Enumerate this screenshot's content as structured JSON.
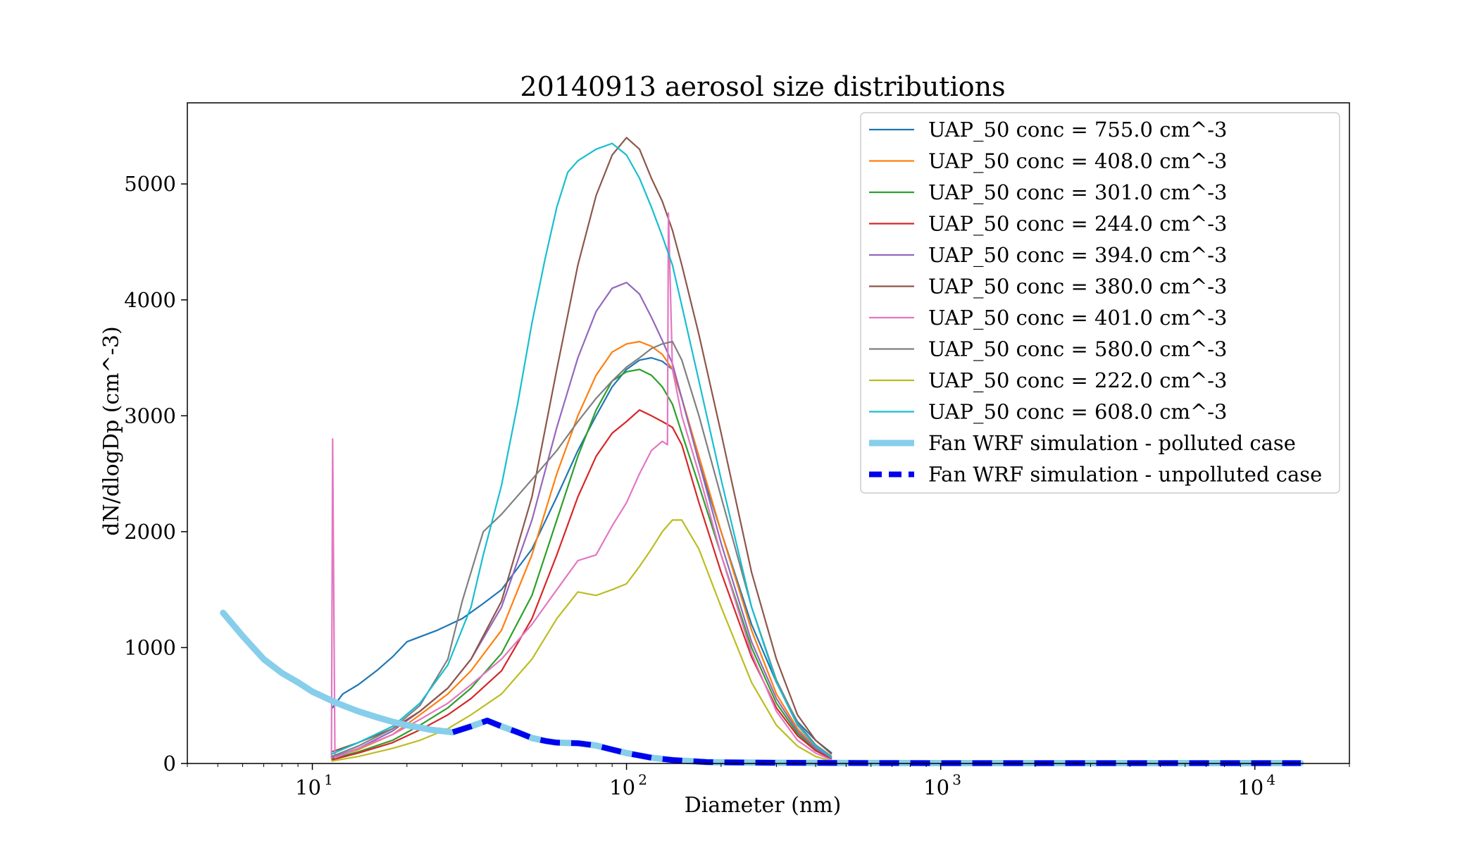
{
  "chart_data": {
    "type": "line",
    "title": "20140913 aerosol size distributions",
    "xlabel": "Diameter (nm)",
    "ylabel": "dN/dlogDp (cm^-3)",
    "xscale": "log",
    "xlim": [
      4,
      20000
    ],
    "ylim": [
      0,
      5700
    ],
    "xticks": [
      {
        "value": 10,
        "base": "10",
        "exp": "1"
      },
      {
        "value": 100,
        "base": "10",
        "exp": "2"
      },
      {
        "value": 1000,
        "base": "10",
        "exp": "3"
      },
      {
        "value": 10000,
        "base": "10",
        "exp": "4"
      }
    ],
    "yticks": [
      0,
      1000,
      2000,
      3000,
      4000,
      5000
    ],
    "grid": false,
    "legend_position": "top-right",
    "series": [
      {
        "name": "UAP_50 conc = 755.0 cm^-3",
        "color": "#1f77b4",
        "style": "solid",
        "x": [
          11.5,
          12.5,
          14,
          16,
          18,
          20,
          25,
          30,
          35,
          40,
          50,
          60,
          70,
          80,
          90,
          100,
          110,
          120,
          130,
          140,
          150,
          170,
          200,
          250,
          300,
          350,
          400,
          450
        ],
        "y": [
          470,
          600,
          680,
          800,
          920,
          1050,
          1150,
          1250,
          1380,
          1500,
          1850,
          2300,
          2700,
          3000,
          3250,
          3400,
          3480,
          3500,
          3470,
          3400,
          3150,
          2600,
          2000,
          1200,
          700,
          360,
          200,
          90
        ]
      },
      {
        "name": "UAP_50 conc = 408.0 cm^-3",
        "color": "#ff7f0e",
        "style": "solid",
        "x": [
          11.5,
          14,
          18,
          22,
          27,
          32,
          40,
          50,
          60,
          70,
          80,
          90,
          100,
          110,
          120,
          130,
          140,
          150,
          170,
          200,
          250,
          300,
          350,
          400,
          450
        ],
        "y": [
          50,
          120,
          250,
          420,
          600,
          800,
          1150,
          1800,
          2500,
          3000,
          3350,
          3550,
          3620,
          3640,
          3600,
          3530,
          3400,
          3150,
          2650,
          2000,
          1150,
          600,
          300,
          140,
          50
        ]
      },
      {
        "name": "UAP_50 conc = 301.0 cm^-3",
        "color": "#2ca02c",
        "style": "solid",
        "x": [
          11.5,
          14,
          18,
          22,
          27,
          32,
          40,
          50,
          60,
          70,
          80,
          90,
          100,
          110,
          120,
          130,
          140,
          150,
          170,
          200,
          250,
          300,
          350,
          400,
          450
        ],
        "y": [
          40,
          100,
          200,
          330,
          480,
          650,
          950,
          1450,
          2100,
          2650,
          3050,
          3300,
          3380,
          3400,
          3350,
          3250,
          3100,
          2850,
          2400,
          1800,
          1000,
          520,
          260,
          120,
          40
        ]
      },
      {
        "name": "UAP_50 conc = 244.0 cm^-3",
        "color": "#d62728",
        "style": "solid",
        "x": [
          11.5,
          14,
          18,
          22,
          27,
          32,
          40,
          50,
          60,
          70,
          80,
          90,
          100,
          110,
          120,
          130,
          140,
          150,
          170,
          200,
          250,
          300,
          350,
          400,
          450
        ],
        "y": [
          30,
          90,
          180,
          290,
          420,
          560,
          800,
          1250,
          1800,
          2300,
          2650,
          2850,
          2950,
          3050,
          3000,
          2950,
          2900,
          2750,
          2250,
          1650,
          920,
          480,
          240,
          110,
          40
        ]
      },
      {
        "name": "UAP_50 conc = 394.0 cm^-3",
        "color": "#9467bd",
        "style": "solid",
        "x": [
          11.5,
          14,
          18,
          22,
          27,
          32,
          40,
          50,
          60,
          70,
          80,
          90,
          100,
          110,
          120,
          130,
          140,
          150,
          170,
          200,
          250,
          300,
          350,
          400,
          450
        ],
        "y": [
          50,
          130,
          280,
          450,
          650,
          900,
          1350,
          2100,
          2900,
          3500,
          3900,
          4100,
          4150,
          4050,
          3850,
          3650,
          3450,
          3150,
          2600,
          1900,
          1050,
          560,
          280,
          130,
          50
        ]
      },
      {
        "name": "UAP_50 conc = 380.0 cm^-3",
        "color": "#8c564b",
        "style": "solid",
        "x": [
          11.5,
          14,
          18,
          22,
          27,
          32,
          40,
          50,
          60,
          70,
          80,
          90,
          100,
          110,
          120,
          130,
          140,
          150,
          170,
          200,
          250,
          300,
          350,
          400,
          450
        ],
        "y": [
          100,
          180,
          300,
          450,
          650,
          900,
          1400,
          2300,
          3400,
          4300,
          4900,
          5250,
          5400,
          5300,
          5050,
          4850,
          4600,
          4300,
          3700,
          2850,
          1650,
          900,
          420,
          200,
          80
        ]
      },
      {
        "name": "UAP_50 conc = 401.0 cm^-3",
        "color": "#e377c2",
        "style": "solid",
        "x": [
          11.5,
          11.6,
          11.8,
          14,
          18,
          22,
          27,
          32,
          40,
          50,
          60,
          70,
          80,
          90,
          100,
          110,
          120,
          130,
          135,
          136,
          140,
          150,
          170,
          200,
          250,
          300,
          350,
          400,
          450
        ],
        "y": [
          40,
          2800,
          50,
          130,
          250,
          380,
          520,
          680,
          900,
          1200,
          1500,
          1750,
          1800,
          2050,
          2250,
          2500,
          2700,
          2780,
          2750,
          4750,
          3400,
          3000,
          2500,
          1800,
          950,
          450,
          200,
          90,
          30
        ]
      },
      {
        "name": "UAP_50 conc = 580.0 cm^-3",
        "color": "#7f7f7f",
        "style": "solid",
        "x": [
          11.5,
          14,
          18,
          22,
          27,
          30,
          35,
          40,
          50,
          60,
          70,
          80,
          90,
          100,
          110,
          120,
          130,
          140,
          150,
          170,
          200,
          250,
          300,
          350,
          400,
          450
        ],
        "y": [
          60,
          150,
          300,
          500,
          900,
          1400,
          2000,
          2150,
          2450,
          2700,
          2950,
          3150,
          3300,
          3420,
          3500,
          3580,
          3620,
          3640,
          3480,
          3000,
          2300,
          1350,
          720,
          350,
          160,
          60
        ]
      },
      {
        "name": "UAP_50 conc = 222.0 cm^-3",
        "color": "#bcbd22",
        "style": "solid",
        "x": [
          11.5,
          14,
          18,
          22,
          27,
          32,
          40,
          50,
          60,
          70,
          80,
          90,
          100,
          110,
          120,
          130,
          140,
          150,
          170,
          200,
          250,
          300,
          350,
          400,
          450
        ],
        "y": [
          20,
          60,
          130,
          200,
          300,
          420,
          600,
          900,
          1250,
          1480,
          1450,
          1500,
          1550,
          1700,
          1850,
          2000,
          2100,
          2100,
          1850,
          1350,
          700,
          330,
          150,
          60,
          20
        ]
      },
      {
        "name": "UAP_50 conc = 608.0 cm^-3",
        "color": "#17becf",
        "style": "solid",
        "x": [
          11.5,
          14,
          18,
          22,
          27,
          32,
          35,
          40,
          45,
          50,
          55,
          60,
          65,
          70,
          80,
          90,
          100,
          110,
          120,
          130,
          140,
          150,
          170,
          200,
          250,
          300,
          350,
          400,
          450
        ],
        "y": [
          80,
          180,
          320,
          520,
          850,
          1350,
          1800,
          2400,
          3100,
          3800,
          4350,
          4800,
          5100,
          5200,
          5300,
          5350,
          5250,
          5050,
          4800,
          4550,
          4300,
          3950,
          3300,
          2450,
          1350,
          700,
          330,
          150,
          50
        ]
      },
      {
        "name": "Fan WRF simulation - polluted case",
        "color": "#87ceeb",
        "style": "thick",
        "x": [
          5.2,
          6,
          7,
          8,
          9,
          10,
          12,
          14,
          16,
          18,
          20,
          24,
          28,
          32,
          36,
          40,
          45,
          50,
          55,
          60,
          70,
          80,
          90,
          100,
          120,
          140,
          160,
          180,
          200,
          300,
          500,
          1000,
          5000,
          14000
        ],
        "y": [
          1300,
          1100,
          900,
          780,
          700,
          620,
          520,
          450,
          400,
          360,
          330,
          290,
          270,
          320,
          370,
          320,
          270,
          220,
          195,
          180,
          175,
          155,
          120,
          90,
          50,
          30,
          20,
          12,
          10,
          6,
          4,
          3,
          3,
          3
        ]
      },
      {
        "name": "Fan WRF simulation - unpolluted case",
        "color": "#0000ee",
        "style": "dashed",
        "x": [
          28,
          32,
          36,
          40,
          45,
          50,
          55,
          60,
          70,
          80,
          90,
          100,
          120,
          140,
          160,
          180,
          200,
          300,
          500,
          1000,
          5000,
          14000
        ],
        "y": [
          270,
          320,
          370,
          320,
          270,
          220,
          195,
          180,
          175,
          155,
          120,
          90,
          50,
          30,
          20,
          12,
          10,
          6,
          4,
          3,
          3,
          3
        ]
      }
    ]
  }
}
